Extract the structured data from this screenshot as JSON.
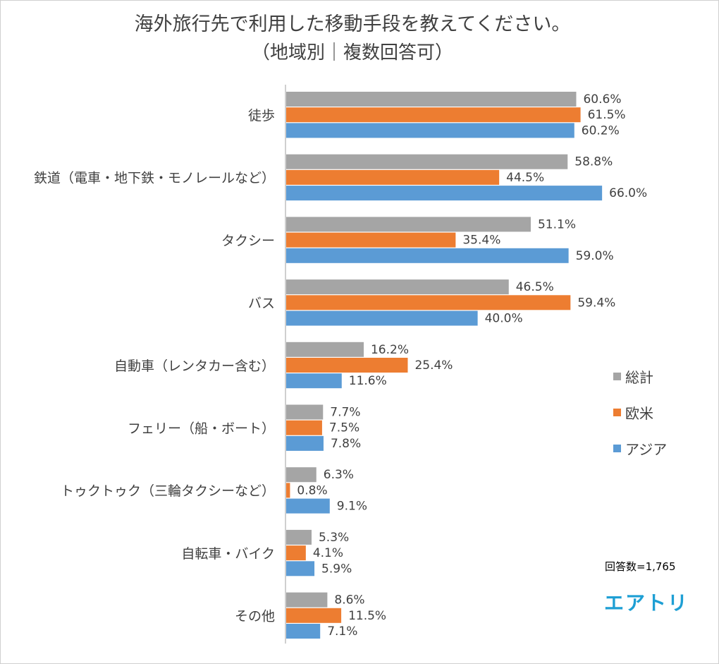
{
  "chart_data": {
    "type": "bar",
    "orientation": "horizontal",
    "title": "海外旅行先で利用した移動手段を教えてください。",
    "subtitle": "（地域別｜複数回答可）",
    "categories": [
      "徒歩",
      "鉄道（電車・地下鉄・モノレールなど）",
      "タクシー",
      "バス",
      "自動車（レンタカー含む）",
      "フェリー（船・ボート）",
      "トゥクトゥク（三輪タクシーなど）",
      "自転車・バイク",
      "その他"
    ],
    "series": [
      {
        "name": "総計",
        "color": "#a5a5a5",
        "values": [
          60.6,
          58.8,
          51.1,
          46.5,
          16.2,
          7.7,
          6.3,
          5.3,
          8.6
        ],
        "labels": [
          "60.6%",
          "58.8%",
          "51.1%",
          "46.5%",
          "16.2%",
          "7.7%",
          "6.3%",
          "5.3%",
          "8.6%"
        ]
      },
      {
        "name": "欧米",
        "color": "#ed7d31",
        "values": [
          61.5,
          44.5,
          35.4,
          59.4,
          25.4,
          7.5,
          0.8,
          4.1,
          11.5
        ],
        "labels": [
          "61.5%",
          "44.5%",
          "35.4%",
          "59.4%",
          "25.4%",
          "7.5%",
          "0.8%",
          "4.1%",
          "11.5%"
        ]
      },
      {
        "name": "アジア",
        "color": "#5b9bd5",
        "values": [
          60.2,
          66.0,
          59.0,
          40.0,
          11.6,
          7.8,
          9.1,
          5.9,
          7.1
        ],
        "labels": [
          "60.2%",
          "66.0%",
          "59.0%",
          "40.0%",
          "11.6%",
          "7.8%",
          "9.1%",
          "5.9%",
          "7.1%"
        ]
      }
    ],
    "xlim": [
      0,
      100
    ],
    "grid": false,
    "legend_position": "right"
  },
  "notes": {
    "response_count": "回答数=1,765",
    "brand": "エアトリ"
  }
}
